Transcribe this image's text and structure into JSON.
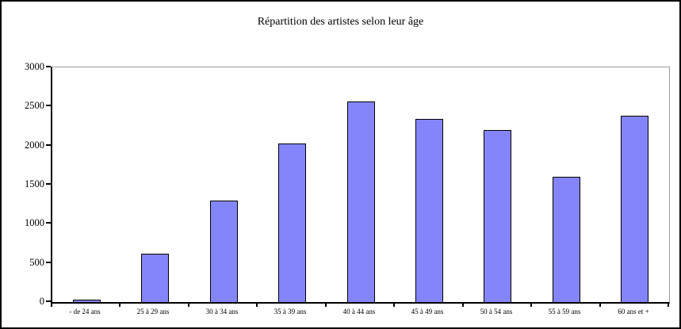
{
  "window": {
    "background": "#ffffff",
    "border_color": "#000000"
  },
  "chart_data": {
    "type": "bar",
    "title": "Répartition des artistes selon leur âge",
    "categories": [
      "- de 24 ans",
      "25 à 29 ans",
      "30 à 34 ans",
      "35 à 39 ans",
      "40 à 44 ans",
      "45 à 49 ans",
      "50 à 54 ans",
      "55 à 59 ans",
      "60 ans et +"
    ],
    "values": [
      30,
      620,
      1300,
      2030,
      2560,
      2340,
      2200,
      1600,
      2380
    ],
    "xlabel": "",
    "ylabel": "",
    "ylim": [
      0,
      3000
    ],
    "yticks": [
      0,
      500,
      1000,
      1500,
      2000,
      2500,
      3000
    ],
    "grid": false,
    "legend": "none",
    "bar_color": "#8585fb",
    "bar_border_color": "#000000",
    "frame_color": "#9b9b9b",
    "axis_color": "#000000"
  }
}
